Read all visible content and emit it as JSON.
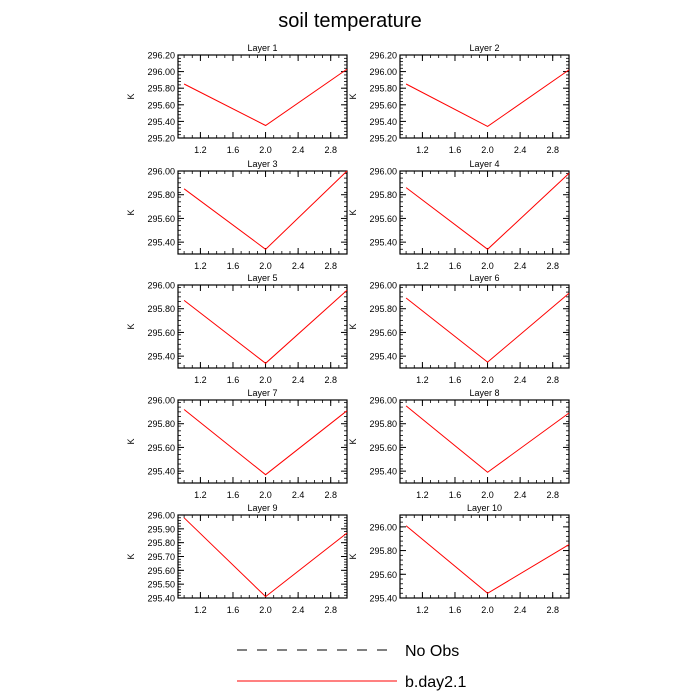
{
  "chart_data": {
    "type": "line",
    "title": "soil temperature",
    "legend": {
      "placement": "bottom-center",
      "entries": [
        {
          "label": "No Obs",
          "style": "dashed",
          "color": "#000000"
        },
        {
          "label": "b.day2.1",
          "style": "solid",
          "color": "#ff0000"
        }
      ]
    },
    "line_color": "#ff0000",
    "grid": false,
    "x": [
      1.0,
      2.0,
      3.0
    ],
    "xlim": [
      0.925,
      3.0
    ],
    "xticks": [
      "1.2",
      "1.6",
      "2.0",
      "2.4",
      "2.8"
    ],
    "panels": [
      {
        "title": "Layer 1",
        "ylabel": "K",
        "ylim": [
          295.2,
          296.2
        ],
        "yticks": [
          "295.20",
          "295.40",
          "295.60",
          "295.80",
          "296.00",
          "296.20"
        ],
        "values": [
          295.85,
          295.35,
          296.03
        ]
      },
      {
        "title": "Layer 2",
        "ylabel": "K",
        "ylim": [
          295.2,
          296.2
        ],
        "yticks": [
          "295.20",
          "295.40",
          "295.60",
          "295.80",
          "296.00",
          "296.20"
        ],
        "values": [
          295.85,
          295.34,
          296.02
        ]
      },
      {
        "title": "Layer 3",
        "ylabel": "K",
        "ylim": [
          295.3,
          296.0
        ],
        "yticks": [
          "295.40",
          "295.60",
          "295.80",
          "296.00"
        ],
        "values": [
          295.85,
          295.34,
          296.0
        ]
      },
      {
        "title": "Layer 4",
        "ylabel": "K",
        "ylim": [
          295.3,
          296.0
        ],
        "yticks": [
          "295.40",
          "295.60",
          "295.80",
          "296.00"
        ],
        "values": [
          295.86,
          295.34,
          295.98
        ]
      },
      {
        "title": "Layer 5",
        "ylabel": "K",
        "ylim": [
          295.3,
          296.0
        ],
        "yticks": [
          "295.40",
          "295.60",
          "295.80",
          "296.00"
        ],
        "values": [
          295.87,
          295.34,
          295.955
        ]
      },
      {
        "title": "Layer 6",
        "ylabel": "K",
        "ylim": [
          295.3,
          296.0
        ],
        "yticks": [
          "295.40",
          "295.60",
          "295.80",
          "296.00"
        ],
        "values": [
          295.89,
          295.35,
          295.93
        ]
      },
      {
        "title": "Layer 7",
        "ylabel": "K",
        "ylim": [
          295.3,
          296.0
        ],
        "yticks": [
          "295.40",
          "295.60",
          "295.80",
          "296.00"
        ],
        "values": [
          295.92,
          295.37,
          295.91
        ]
      },
      {
        "title": "Layer 8",
        "ylabel": "K",
        "ylim": [
          295.3,
          296.0
        ],
        "yticks": [
          "295.40",
          "295.60",
          "295.80",
          "296.00"
        ],
        "values": [
          295.95,
          295.39,
          295.89
        ]
      },
      {
        "title": "Layer 9",
        "ylabel": "K",
        "ylim": [
          295.4,
          296.0
        ],
        "yticks": [
          "295.40",
          "295.50",
          "295.60",
          "295.70",
          "295.80",
          "295.90",
          "296.00"
        ],
        "values": [
          295.98,
          295.41,
          295.87
        ]
      },
      {
        "title": "Layer 10",
        "ylabel": "K",
        "ylim": [
          295.4,
          296.1
        ],
        "yticks": [
          "295.40",
          "295.60",
          "295.80",
          "296.00"
        ],
        "values": [
          296.01,
          295.44,
          295.85
        ]
      }
    ]
  }
}
